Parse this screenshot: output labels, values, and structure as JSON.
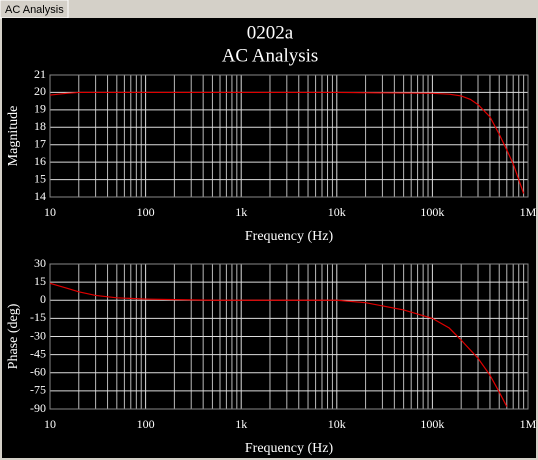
{
  "tab": "AC Analysis",
  "title": "0202a",
  "subtitle": "AC Analysis",
  "chart_data": [
    {
      "type": "line",
      "xlabel": "Frequency (Hz)",
      "ylabel": "Magnitude",
      "color": "#e00000",
      "xscale": "log",
      "grid": true,
      "minor_grid": true,
      "x": [
        10,
        15,
        20,
        100,
        1000,
        10000,
        100000,
        150000,
        200000,
        250000,
        300000,
        400000,
        500000,
        600000,
        700000,
        800000,
        900000
      ],
      "values": [
        19.85,
        19.95,
        20,
        20,
        20,
        20,
        19.95,
        19.9,
        19.8,
        19.6,
        19.3,
        18.6,
        17.6,
        16.7,
        15.9,
        15,
        14.2
      ],
      "xlim": [
        10,
        1000000
      ],
      "ylim": [
        14,
        21
      ],
      "xticks": [
        10,
        100,
        {
          "value": 1000,
          "label": "1k"
        },
        {
          "value": 10000,
          "label": "10k"
        },
        {
          "value": 100000,
          "label": "100k"
        },
        {
          "value": 1000000,
          "label": "1M"
        }
      ],
      "yticks": [
        14,
        15,
        16,
        17,
        18,
        19,
        20,
        21
      ]
    },
    {
      "type": "line",
      "xlabel": "Frequency (Hz)",
      "ylabel": "Phase (deg)",
      "color": "#e00000",
      "xscale": "log",
      "grid": true,
      "minor_grid": true,
      "x": [
        10,
        15,
        20,
        30,
        50,
        100,
        200,
        500,
        1000,
        10000,
        20000,
        50000,
        100000,
        150000,
        200000,
        300000,
        400000,
        500000,
        600000
      ],
      "values": [
        14,
        10,
        7,
        4,
        2,
        1,
        0.5,
        0,
        0,
        0,
        -2,
        -8,
        -15,
        -23,
        -33,
        -48,
        -62,
        -76,
        -88
      ],
      "xlim": [
        10,
        1000000
      ],
      "ylim": [
        -90,
        30
      ],
      "xticks": [
        10,
        100,
        {
          "value": 1000,
          "label": "1k"
        },
        {
          "value": 10000,
          "label": "10k"
        },
        {
          "value": 100000,
          "label": "100k"
        },
        {
          "value": 1000000,
          "label": "1M"
        }
      ],
      "yticks": [
        -90,
        -75,
        -60,
        -45,
        -30,
        -15,
        0,
        15,
        30
      ]
    }
  ]
}
